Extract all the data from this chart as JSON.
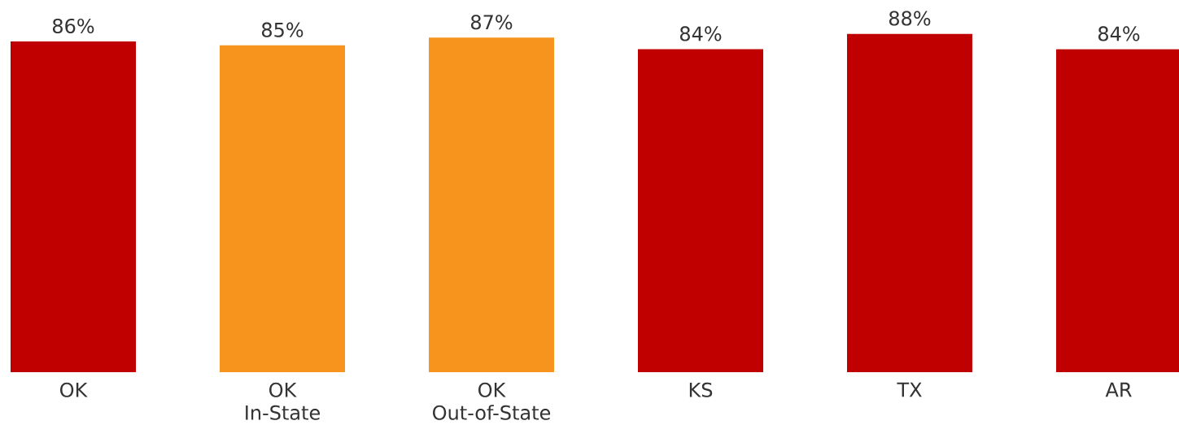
{
  "chart_data": {
    "type": "bar",
    "categories": [
      "OK",
      "OK\nIn-State",
      "OK\nOut-of-State",
      "KS",
      "TX",
      "AR"
    ],
    "values": [
      86,
      85,
      87,
      84,
      88,
      84
    ],
    "colors": [
      "#c00000",
      "#f7941d",
      "#f7941d",
      "#c00000",
      "#c00000",
      "#c00000"
    ],
    "value_labels": [
      "86%",
      "85%",
      "87%",
      "84%",
      "88%",
      "84%"
    ]
  }
}
